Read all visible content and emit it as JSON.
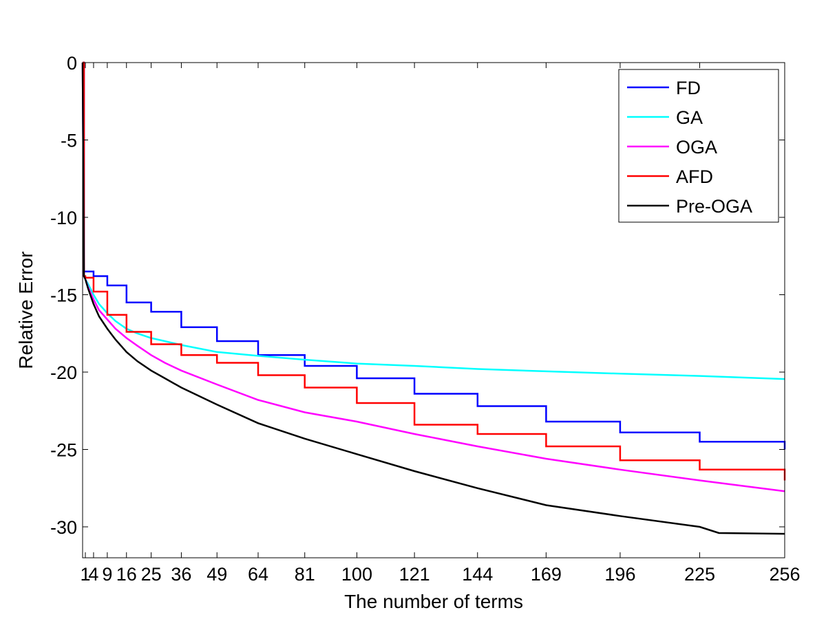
{
  "chart_data": {
    "type": "line",
    "title": "",
    "xlabel": "The number of terms",
    "ylabel": "Relative Error",
    "xlim": [
      0,
      256
    ],
    "ylim": [
      -32,
      0
    ],
    "x_ticks": [
      1,
      4,
      9,
      16,
      25,
      36,
      49,
      64,
      81,
      100,
      121,
      144,
      169,
      196,
      225,
      256
    ],
    "x_tick_labels": [
      "1",
      "4",
      "9",
      "16",
      "25",
      "36",
      "49",
      "64",
      "81",
      "100",
      "121",
      "144",
      "169",
      "196",
      "225",
      "256"
    ],
    "y_ticks": [
      0,
      -5,
      -10,
      -15,
      -20,
      -25,
      -30
    ],
    "y_tick_labels": [
      "0",
      "-5",
      "-10",
      "-15",
      "-20",
      "-25",
      "-30"
    ],
    "grid": false,
    "legend_position": "top-right",
    "series": [
      {
        "name": "FD",
        "color": "#0000ff",
        "style": "step",
        "points": [
          [
            0,
            0
          ],
          [
            0.5,
            -13.5
          ],
          [
            1,
            -13.5
          ],
          [
            4,
            -13.8
          ],
          [
            9,
            -14.4
          ],
          [
            16,
            -15.5
          ],
          [
            25,
            -16.1
          ],
          [
            36,
            -17.1
          ],
          [
            49,
            -18.0
          ],
          [
            64,
            -18.9
          ],
          [
            81,
            -19.6
          ],
          [
            100,
            -20.4
          ],
          [
            121,
            -21.4
          ],
          [
            144,
            -22.2
          ],
          [
            169,
            -23.2
          ],
          [
            196,
            -23.9
          ],
          [
            225,
            -24.5
          ],
          [
            256,
            -25.0
          ]
        ]
      },
      {
        "name": "GA",
        "color": "#00ffff",
        "style": "line",
        "points": [
          [
            0,
            0
          ],
          [
            0.5,
            -13.8
          ],
          [
            1,
            -14.0
          ],
          [
            2,
            -14.3
          ],
          [
            4,
            -15.0
          ],
          [
            6,
            -15.6
          ],
          [
            9,
            -16.2
          ],
          [
            12,
            -16.7
          ],
          [
            16,
            -17.2
          ],
          [
            20,
            -17.5
          ],
          [
            25,
            -17.8
          ],
          [
            30,
            -18.0
          ],
          [
            36,
            -18.25
          ],
          [
            49,
            -18.7
          ],
          [
            64,
            -18.95
          ],
          [
            81,
            -19.2
          ],
          [
            100,
            -19.45
          ],
          [
            121,
            -19.6
          ],
          [
            144,
            -19.8
          ],
          [
            169,
            -19.95
          ],
          [
            196,
            -20.1
          ],
          [
            225,
            -20.25
          ],
          [
            256,
            -20.45
          ]
        ]
      },
      {
        "name": "OGA",
        "color": "#ff00ff",
        "style": "line",
        "points": [
          [
            0,
            0
          ],
          [
            0.5,
            -13.8
          ],
          [
            1,
            -14.0
          ],
          [
            2,
            -14.5
          ],
          [
            4,
            -15.3
          ],
          [
            6,
            -16.0
          ],
          [
            9,
            -16.6
          ],
          [
            12,
            -17.2
          ],
          [
            16,
            -17.8
          ],
          [
            20,
            -18.3
          ],
          [
            25,
            -18.9
          ],
          [
            30,
            -19.4
          ],
          [
            36,
            -19.9
          ],
          [
            49,
            -20.8
          ],
          [
            64,
            -21.8
          ],
          [
            81,
            -22.6
          ],
          [
            100,
            -23.2
          ],
          [
            121,
            -24.0
          ],
          [
            144,
            -24.8
          ],
          [
            169,
            -25.6
          ],
          [
            196,
            -26.3
          ],
          [
            225,
            -27.0
          ],
          [
            256,
            -27.7
          ]
        ]
      },
      {
        "name": "AFD",
        "color": "#ff0000",
        "style": "step",
        "points": [
          [
            0,
            0
          ],
          [
            0.5,
            -13.8
          ],
          [
            1,
            -13.9
          ],
          [
            4,
            -14.8
          ],
          [
            9,
            -16.3
          ],
          [
            16,
            -17.4
          ],
          [
            25,
            -18.2
          ],
          [
            36,
            -18.9
          ],
          [
            49,
            -19.4
          ],
          [
            64,
            -20.2
          ],
          [
            81,
            -21.0
          ],
          [
            100,
            -22.0
          ],
          [
            121,
            -23.4
          ],
          [
            144,
            -24.0
          ],
          [
            169,
            -24.8
          ],
          [
            196,
            -25.7
          ],
          [
            225,
            -26.3
          ],
          [
            256,
            -27.0
          ]
        ]
      },
      {
        "name": "Pre-OGA",
        "color": "#000000",
        "style": "line",
        "points": [
          [
            0,
            0
          ],
          [
            0.5,
            -13.8
          ],
          [
            1,
            -14.0
          ],
          [
            2,
            -14.6
          ],
          [
            4,
            -15.6
          ],
          [
            6,
            -16.4
          ],
          [
            9,
            -17.2
          ],
          [
            12,
            -17.9
          ],
          [
            16,
            -18.7
          ],
          [
            20,
            -19.3
          ],
          [
            25,
            -19.9
          ],
          [
            30,
            -20.4
          ],
          [
            36,
            -21.0
          ],
          [
            49,
            -22.1
          ],
          [
            64,
            -23.3
          ],
          [
            81,
            -24.3
          ],
          [
            100,
            -25.3
          ],
          [
            121,
            -26.4
          ],
          [
            144,
            -27.5
          ],
          [
            169,
            -28.6
          ],
          [
            196,
            -29.3
          ],
          [
            225,
            -30.0
          ],
          [
            232,
            -30.4
          ],
          [
            256,
            -30.45
          ]
        ]
      }
    ]
  }
}
